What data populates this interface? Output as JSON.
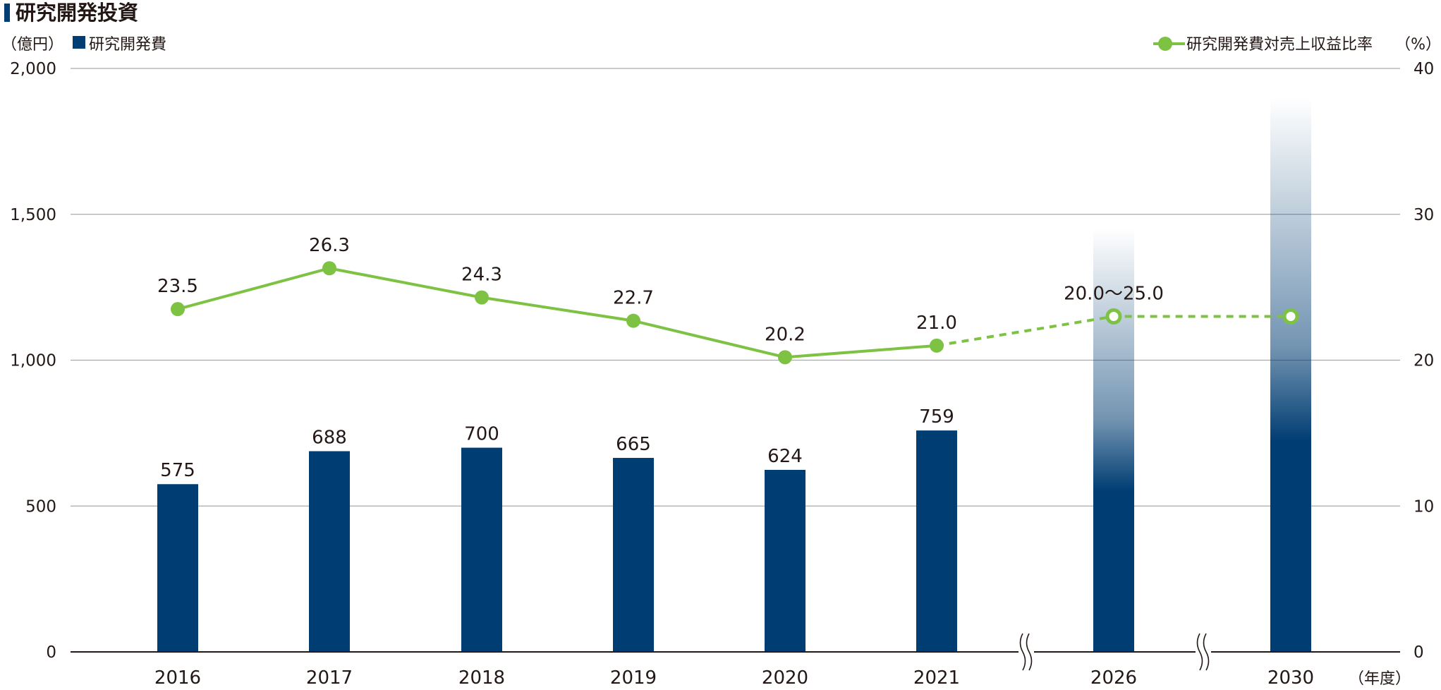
{
  "title": "研究開発投資",
  "legend": {
    "bar_label": "研究開発費",
    "line_label": "研究開発費対売上収益比率"
  },
  "axes": {
    "left_unit": "（億円）",
    "right_unit": "（%）",
    "x_unit": "（年度）",
    "left_ticks": [
      "0",
      "500",
      "1,000",
      "1,500",
      "2,000"
    ],
    "right_ticks": [
      "0",
      "10",
      "20",
      "30",
      "40"
    ]
  },
  "colors": {
    "bar": "#003d73",
    "line": "#7dc242",
    "grid": "#aaaaaa",
    "axis": "#231815"
  },
  "chart_data": {
    "type": "bar",
    "title": "研究開発投資",
    "categories": [
      "2016",
      "2017",
      "2018",
      "2019",
      "2020",
      "2021",
      "2026",
      "2030"
    ],
    "series": [
      {
        "name": "研究開発費",
        "type": "bar",
        "axis": "left",
        "values": [
          575,
          688,
          700,
          665,
          624,
          759,
          null,
          null
        ],
        "labels": [
          "575",
          "688",
          "700",
          "665",
          "624",
          "759",
          "",
          ""
        ],
        "target_gradient_tops": [
          1450,
          1900
        ]
      },
      {
        "name": "研究開発費対売上収益比率",
        "type": "line",
        "axis": "right",
        "values": [
          23.5,
          26.3,
          24.3,
          22.7,
          20.2,
          21.0,
          23.0,
          23.0
        ],
        "labels": [
          "23.5",
          "26.3",
          "24.3",
          "22.7",
          "20.2",
          "21.0",
          "20.0〜25.0",
          ""
        ],
        "projected_from_index": 5
      }
    ],
    "ylim_left": [
      0,
      2000
    ],
    "ylim_right": [
      0,
      40
    ],
    "ylabel_left": "（億円）",
    "ylabel_right": "（%）",
    "xlabel": "（年度）",
    "axis_breaks_between": [
      [
        "2021",
        "2026"
      ],
      [
        "2026",
        "2030"
      ]
    ],
    "grid": true,
    "legend_position": "top"
  }
}
